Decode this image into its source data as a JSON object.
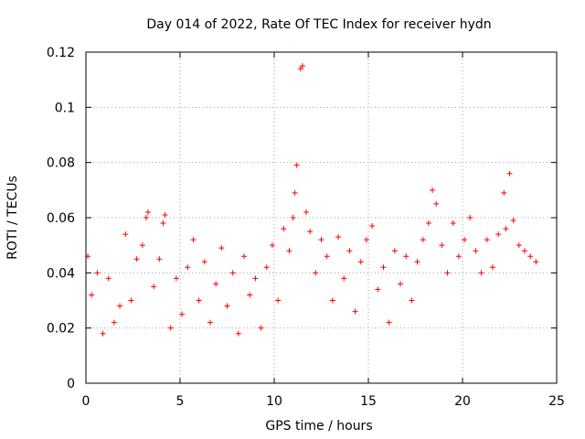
{
  "chart_data": {
    "type": "scatter",
    "title": "Day 014 of 2022, Rate Of TEC Index for receiver hydn",
    "xlabel": "GPS time / hours",
    "ylabel": "ROTI / TECUs",
    "xlim": [
      0,
      25
    ],
    "ylim": [
      0,
      0.12
    ],
    "xticks": [
      0,
      5,
      10,
      15,
      20,
      25
    ],
    "xtick_labels": [
      "0",
      "5",
      "10",
      "15",
      "20",
      "25"
    ],
    "yticks": [
      0,
      0.02,
      0.04,
      0.06,
      0.08,
      0.1,
      0.12
    ],
    "ytick_labels": [
      "0",
      "0.02",
      "0.04",
      "0.06",
      "0.08",
      "0.1",
      "0.12"
    ],
    "grid": true,
    "marker": "+",
    "marker_color": "#ff0000",
    "series": [
      {
        "name": "ROTI",
        "x": [
          0.1,
          0.3,
          0.6,
          0.9,
          1.2,
          1.5,
          1.8,
          2.1,
          2.4,
          2.7,
          3.0,
          3.2,
          3.3,
          3.6,
          3.9,
          4.1,
          4.2,
          4.5,
          4.8,
          5.1,
          5.4,
          5.7,
          6.0,
          6.3,
          6.6,
          6.9,
          7.2,
          7.5,
          7.8,
          8.1,
          8.4,
          8.7,
          9.0,
          9.3,
          9.6,
          9.9,
          10.2,
          10.5,
          10.8,
          11.0,
          11.1,
          11.2,
          11.4,
          11.5,
          11.7,
          11.9,
          12.2,
          12.5,
          12.8,
          13.1,
          13.4,
          13.7,
          14.0,
          14.3,
          14.6,
          14.9,
          15.2,
          15.5,
          15.8,
          16.1,
          16.4,
          16.7,
          17.0,
          17.3,
          17.6,
          17.9,
          18.2,
          18.4,
          18.6,
          18.9,
          19.2,
          19.5,
          19.8,
          20.1,
          20.4,
          20.7,
          21.0,
          21.3,
          21.6,
          21.9,
          22.2,
          22.3,
          22.5,
          22.7,
          23.0,
          23.3,
          23.6,
          23.9
        ],
        "y": [
          0.046,
          0.032,
          0.04,
          0.018,
          0.038,
          0.022,
          0.028,
          0.054,
          0.03,
          0.045,
          0.05,
          0.06,
          0.062,
          0.035,
          0.045,
          0.058,
          0.061,
          0.02,
          0.038,
          0.025,
          0.042,
          0.052,
          0.03,
          0.044,
          0.022,
          0.036,
          0.049,
          0.028,
          0.04,
          0.018,
          0.046,
          0.032,
          0.038,
          0.02,
          0.042,
          0.05,
          0.03,
          0.056,
          0.048,
          0.06,
          0.069,
          0.079,
          0.114,
          0.115,
          0.062,
          0.055,
          0.04,
          0.052,
          0.046,
          0.03,
          0.053,
          0.038,
          0.048,
          0.026,
          0.044,
          0.052,
          0.057,
          0.034,
          0.042,
          0.022,
          0.048,
          0.036,
          0.046,
          0.03,
          0.044,
          0.052,
          0.058,
          0.07,
          0.065,
          0.05,
          0.04,
          0.058,
          0.046,
          0.052,
          0.06,
          0.048,
          0.04,
          0.052,
          0.042,
          0.054,
          0.069,
          0.056,
          0.076,
          0.059,
          0.05,
          0.048,
          0.046,
          0.044
        ]
      }
    ]
  }
}
